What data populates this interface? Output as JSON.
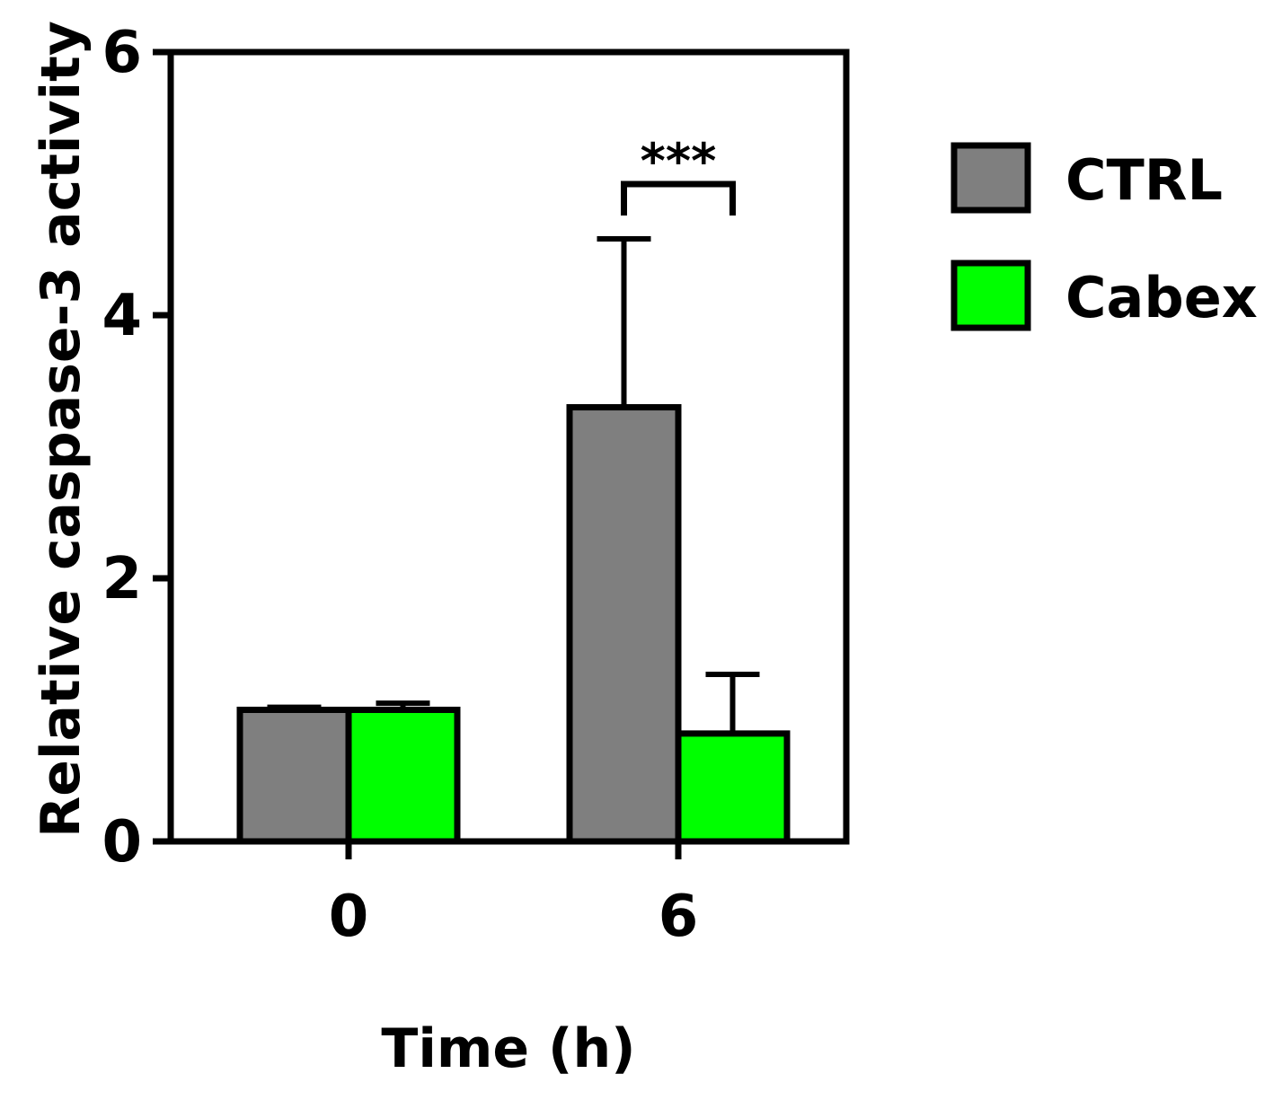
{
  "chart_data": {
    "type": "bar",
    "categories": [
      "0",
      "6"
    ],
    "series": [
      {
        "name": "CTRL",
        "values": [
          1.0,
          3.3
        ],
        "errors": [
          0.02,
          1.28
        ],
        "color": "#7f7f7f"
      },
      {
        "name": "Cabex",
        "values": [
          1.0,
          0.82
        ],
        "errors": [
          0.05,
          0.45
        ],
        "color": "#00ff00"
      }
    ],
    "xlabel": "Time (h)",
    "ylabel": "Relative caspase-3 activity",
    "ylim": [
      0,
      6
    ],
    "yticks": [
      "0",
      "2",
      "4",
      "6"
    ],
    "grid": false,
    "legend_position": "right",
    "annotations": [
      {
        "text": "***",
        "category": "6"
      }
    ]
  }
}
